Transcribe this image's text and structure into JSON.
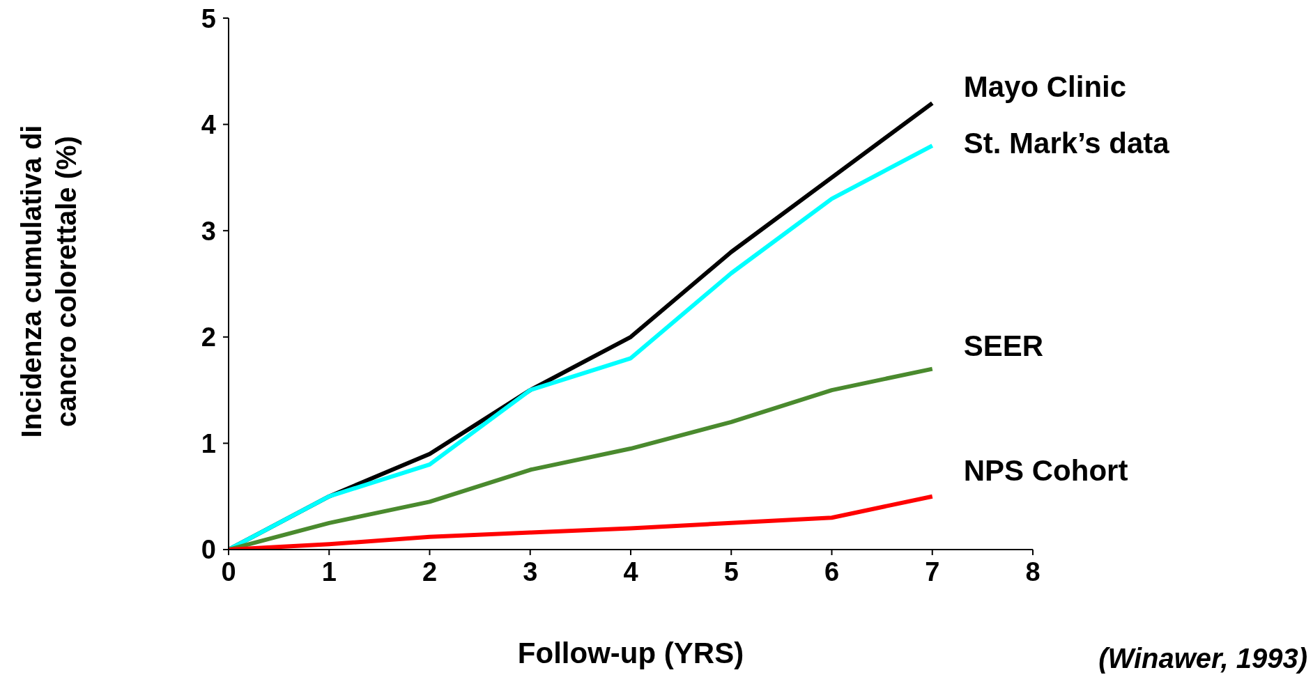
{
  "chart_data": {
    "type": "line",
    "xlabel": "Follow-up (YRS)",
    "ylabel": "Incidenza cumulativa di cancro colorettale (%)",
    "x": [
      0,
      1,
      2,
      3,
      4,
      5,
      6,
      7
    ],
    "series": [
      {
        "name": "Mayo Clinic",
        "color": "#000000",
        "values": [
          0,
          0.5,
          0.9,
          1.5,
          2.0,
          2.8,
          3.5,
          4.2
        ]
      },
      {
        "name": "St. Mark’s data",
        "color": "#00ffff",
        "values": [
          0,
          0.5,
          0.8,
          1.5,
          1.8,
          2.6,
          3.3,
          3.8
        ]
      },
      {
        "name": "SEER",
        "color": "#4a8a2e",
        "values": [
          0,
          0.25,
          0.45,
          0.75,
          0.95,
          1.2,
          1.5,
          1.7
        ]
      },
      {
        "name": "NPS Cohort",
        "color": "#ff0000",
        "values": [
          0,
          0.05,
          0.12,
          0.16,
          0.2,
          0.25,
          0.3,
          0.5
        ]
      }
    ],
    "xlim": [
      0,
      8
    ],
    "xticks": [
      0,
      1,
      2,
      3,
      4,
      5,
      6,
      7,
      8
    ],
    "ylim": [
      0,
      5
    ],
    "yticks": [
      0,
      1,
      2,
      3,
      4,
      5
    ],
    "grid": false,
    "legend": false,
    "marker": "none",
    "line_style": "solid",
    "annotations": [
      "(Winawer, 1993)"
    ]
  }
}
